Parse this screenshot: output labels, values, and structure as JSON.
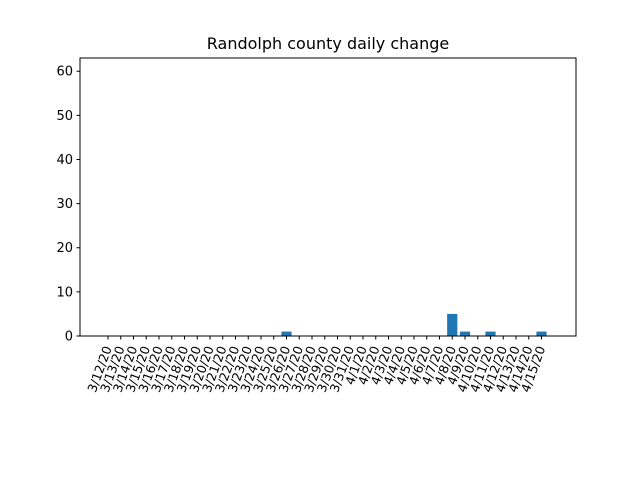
{
  "chart_data": {
    "type": "bar",
    "title": "Randolph county daily change",
    "xlabel": "",
    "ylabel": "",
    "ylim": [
      0,
      63
    ],
    "yticks": [
      0,
      10,
      20,
      30,
      40,
      50,
      60
    ],
    "grid": false,
    "colors": {
      "bar": "#1f77b4",
      "axis": "#000000"
    },
    "categories": [
      "3/12/20",
      "3/13/20",
      "3/14/20",
      "3/15/20",
      "3/16/20",
      "3/17/20",
      "3/18/20",
      "3/19/20",
      "3/20/20",
      "3/21/20",
      "3/22/20",
      "3/23/20",
      "3/24/20",
      "3/25/20",
      "3/26/20",
      "3/27/20",
      "3/28/20",
      "3/29/20",
      "3/30/20",
      "3/31/20",
      "4/1/20",
      "4/2/20",
      "4/3/20",
      "4/4/20",
      "4/5/20",
      "4/6/20",
      "4/7/20",
      "4/8/20",
      "4/9/20",
      "4/10/20",
      "4/11/20",
      "4/12/20",
      "4/13/20",
      "4/14/20",
      "4/15/20"
    ],
    "values": [
      0,
      0,
      0,
      0,
      0,
      0,
      0,
      0,
      0,
      0,
      0,
      0,
      0,
      0,
      1,
      0,
      0,
      0,
      0,
      0,
      0,
      0,
      0,
      0,
      0,
      0,
      0,
      5,
      1,
      0,
      1,
      0,
      0,
      0,
      1
    ]
  }
}
